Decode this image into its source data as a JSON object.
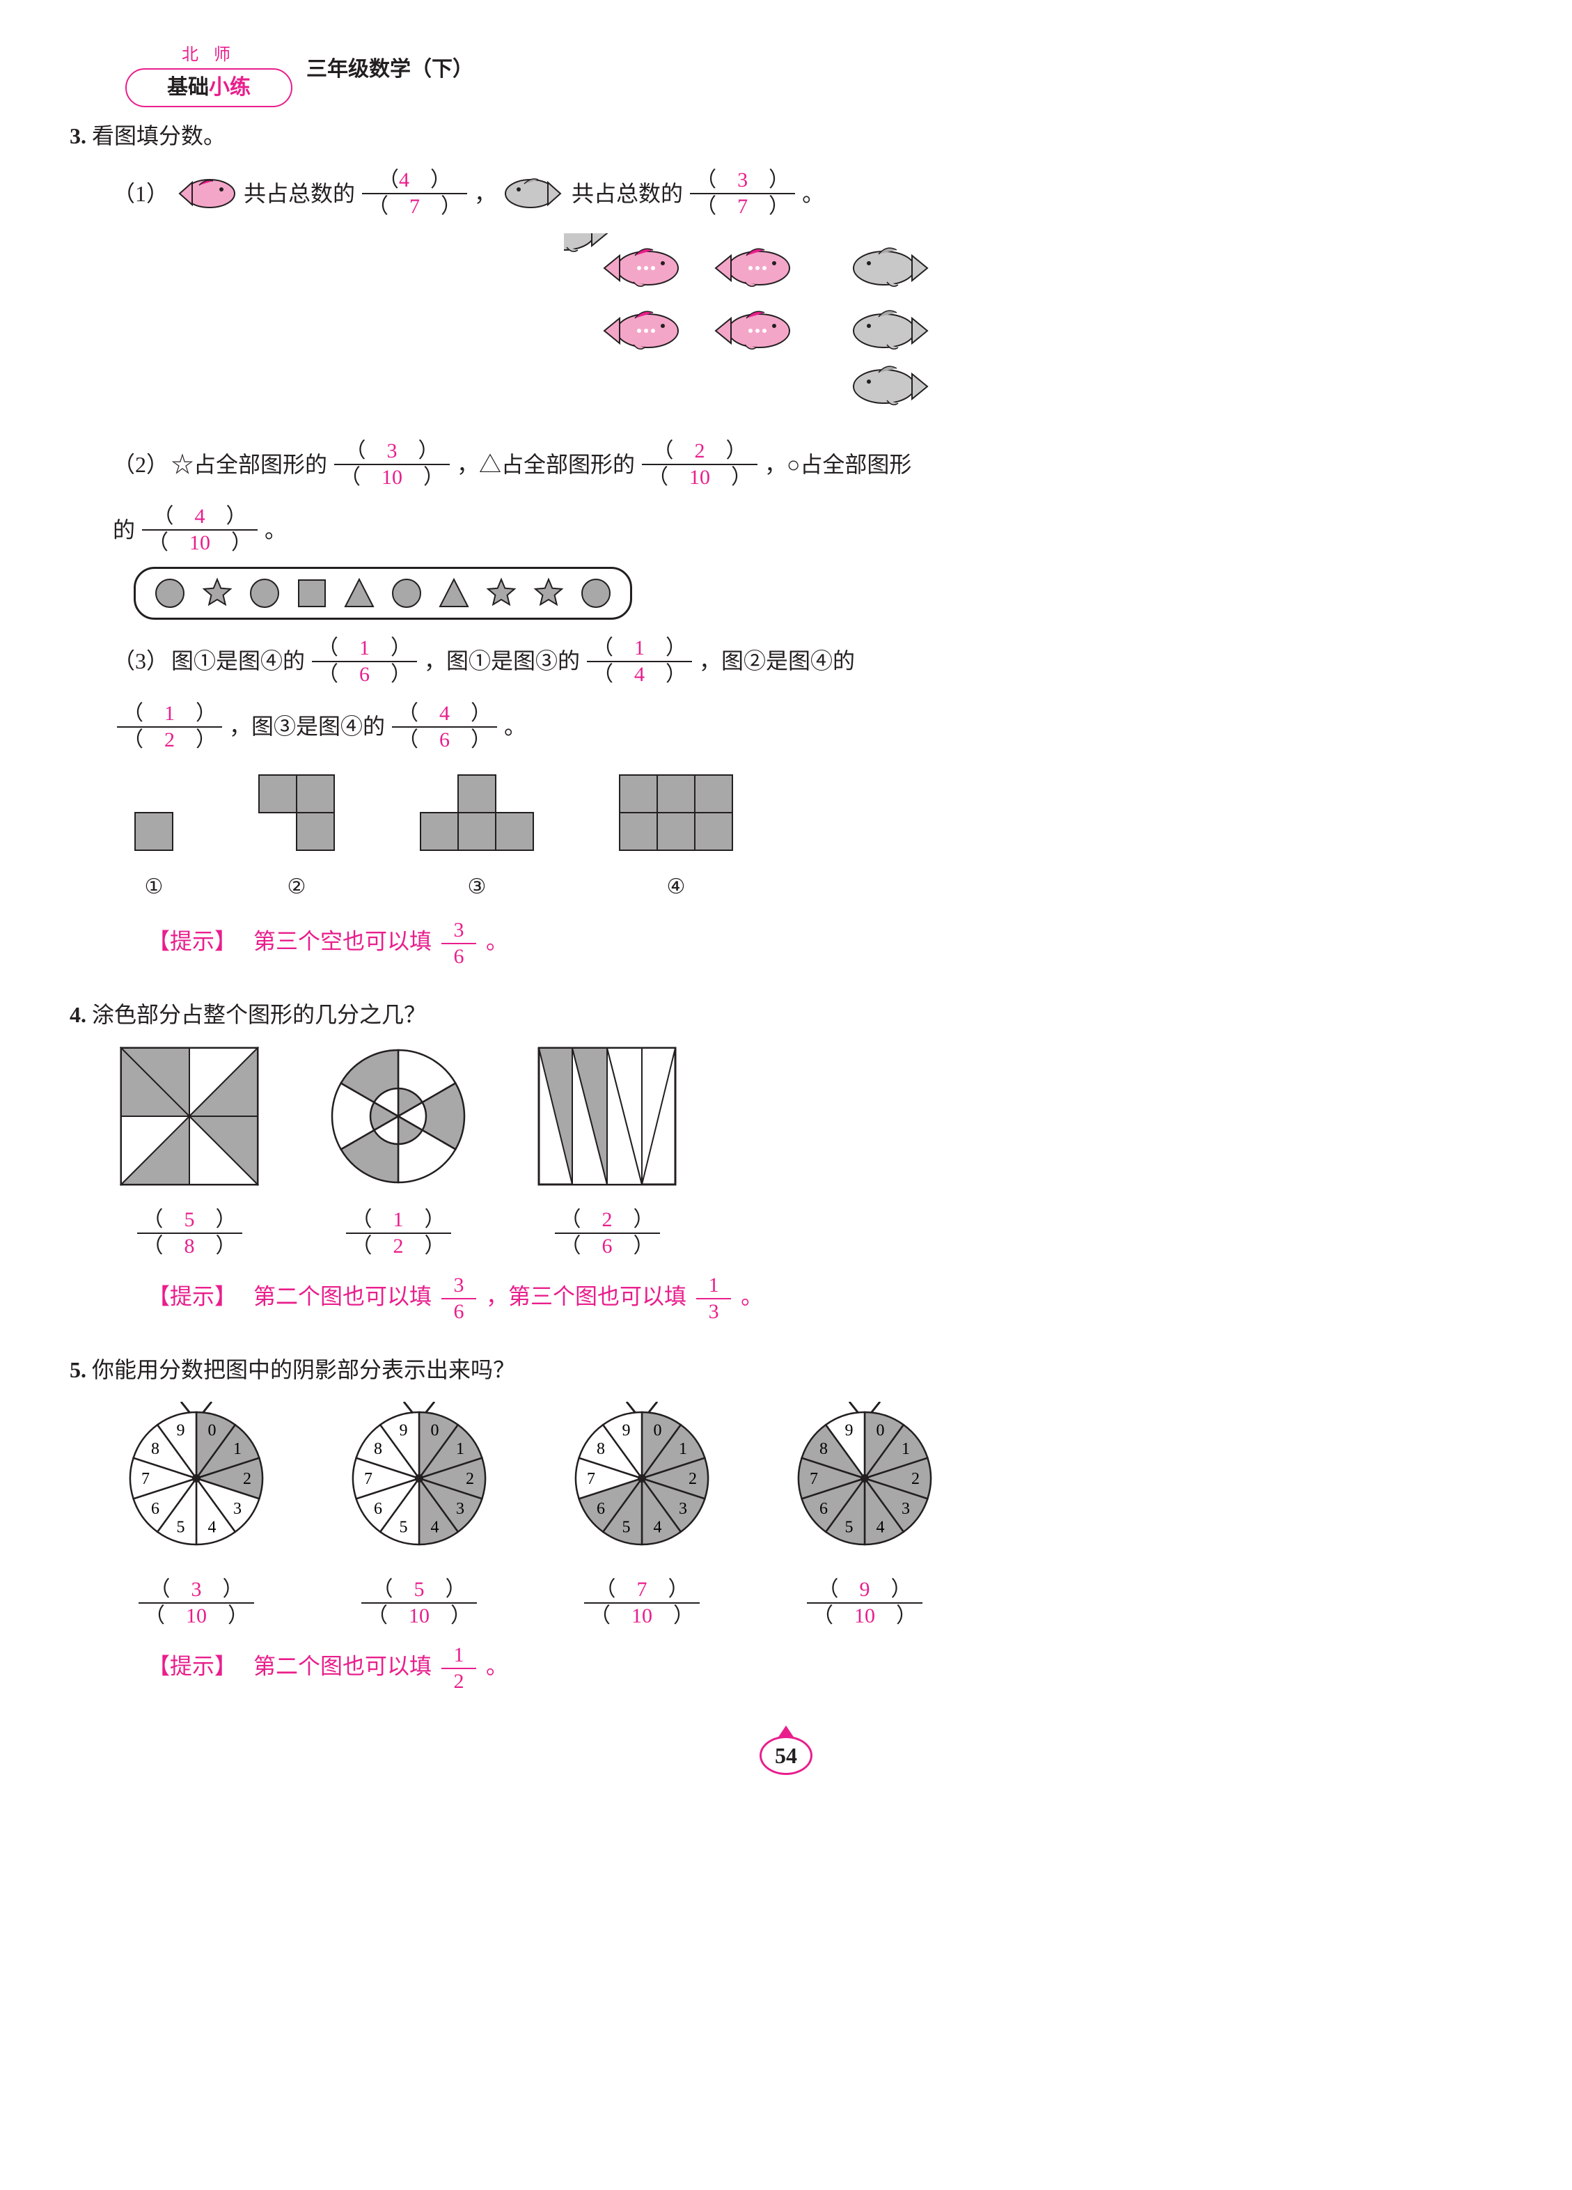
{
  "header": {
    "badge_top": "北 师",
    "badge_main_black": "基础",
    "badge_main_pink": "小练",
    "title": "三年级数学（下）"
  },
  "q3": {
    "num": "3",
    "title": "看图填分数。",
    "p1": {
      "label": "（1）",
      "text1": "共占总数的",
      "frac1_num": "4",
      "frac1_den": "7",
      "comma": "，",
      "text2": "共占总数的",
      "frac2_num": "3",
      "frac2_den": "7",
      "period": "。",
      "fish_pink_color": "#f4a6c9",
      "fish_grey_color": "#b8b8b8"
    },
    "p2": {
      "label": "（2）",
      "t1": "☆占全部图形的",
      "f1_num": "3",
      "f1_den": "10",
      "t2": "，△占全部图形的",
      "f2_num": "2",
      "f2_den": "10",
      "t3": "，○占全部图形",
      "t4": "的",
      "f3_num": "4",
      "f3_den": "10",
      "period": "。",
      "shapes": [
        "circle",
        "star",
        "circle",
        "square",
        "triangle",
        "circle",
        "triangle",
        "star",
        "star",
        "circle"
      ],
      "shape_fill": "#a8a8a8",
      "shape_stroke": "#231f20"
    },
    "p3": {
      "label": "（3）",
      "seg1": "图①是图④的",
      "f1_num": "1",
      "f1_den": "6",
      "seg2": "，图①是图③的",
      "f2_num": "1",
      "f2_den": "4",
      "seg3": "，图②是图④的",
      "f3_num": "1",
      "f3_den": "2",
      "seg4": "，图③是图④的",
      "f4_num": "4",
      "f4_den": "6",
      "period": "。",
      "labels": [
        "①",
        "②",
        "③",
        "④"
      ],
      "cell_fill": "#a8a8a8",
      "cell_size": 54
    },
    "hint_label": "【提示】",
    "hint_text": "第三个空也可以填",
    "hint_frac_num": "3",
    "hint_frac_den": "6",
    "hint_period": "。"
  },
  "q4": {
    "num": "4",
    "title": "涂色部分占整个图形的几分之几？",
    "items": [
      {
        "num": "5",
        "den": "8"
      },
      {
        "num": "1",
        "den": "2"
      },
      {
        "num": "2",
        "den": "6"
      }
    ],
    "shape_fill": "#a8a8a8",
    "hint_label": "【提示】",
    "hint_text1": "第二个图也可以填",
    "hint_f1_num": "3",
    "hint_f1_den": "6",
    "hint_text2": "，第三个图也可以填",
    "hint_f2_num": "1",
    "hint_f2_den": "3",
    "hint_period": "。"
  },
  "q5": {
    "num": "5",
    "title": "你能用分数把图中的阴影部分表示出来吗？",
    "items": [
      {
        "shaded": 3,
        "num": "3",
        "den": "10"
      },
      {
        "shaded": 5,
        "num": "5",
        "den": "10"
      },
      {
        "shaded": 7,
        "num": "7",
        "den": "10"
      },
      {
        "shaded": 9,
        "num": "9",
        "den": "10"
      }
    ],
    "dial_fill": "#a8a8a8",
    "hint_label": "【提示】",
    "hint_text": "第二个图也可以填",
    "hint_frac_num": "1",
    "hint_frac_den": "2",
    "hint_period": "。"
  },
  "page_number": "54"
}
